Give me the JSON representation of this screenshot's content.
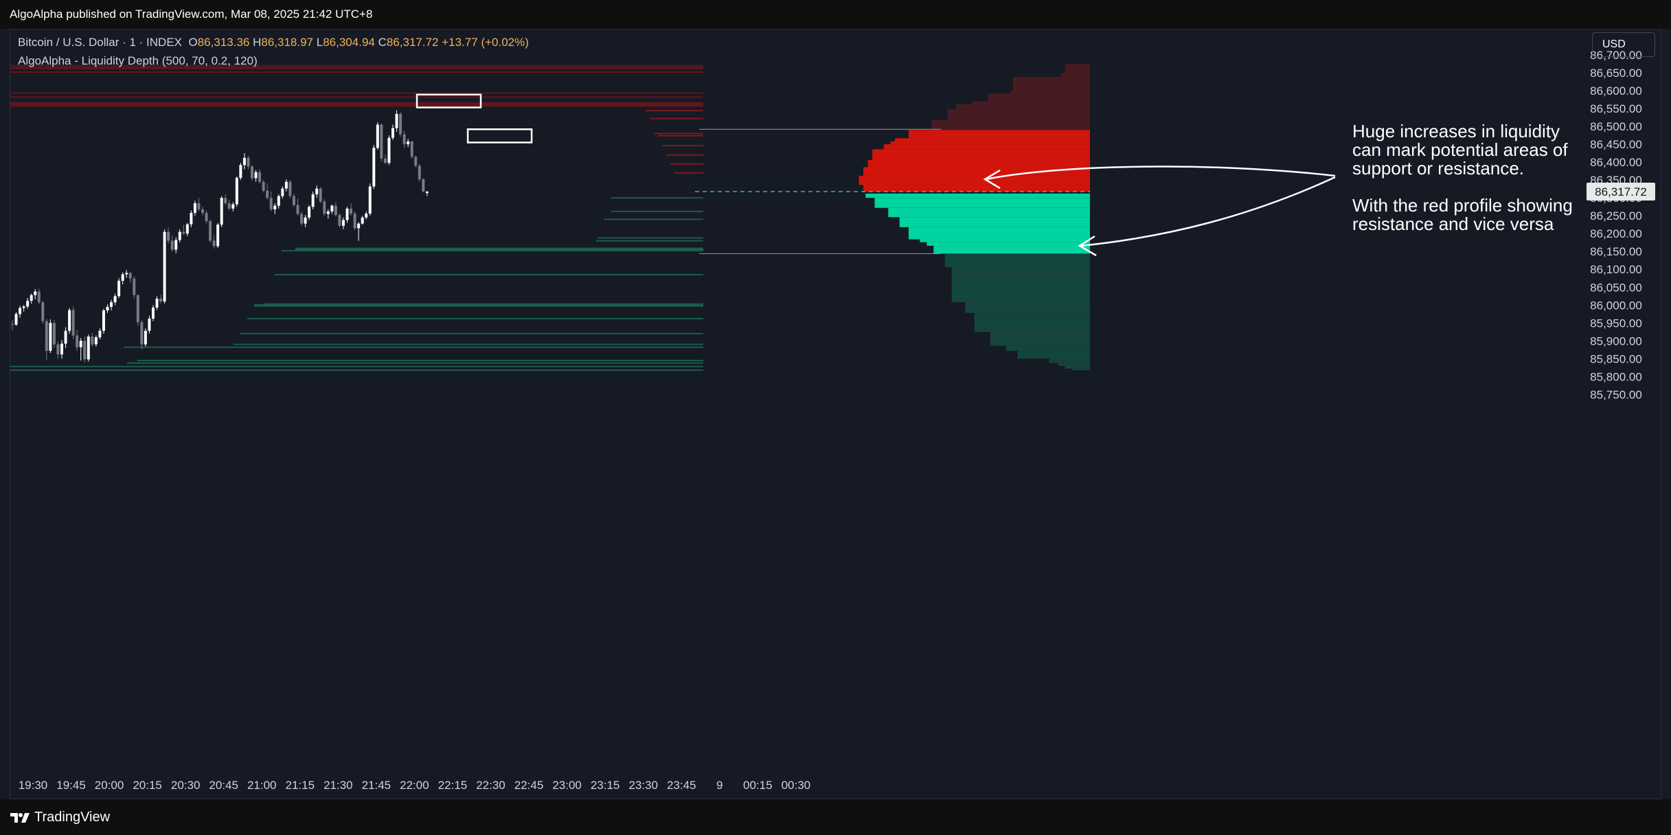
{
  "header": {
    "publish_line": "AlgoAlpha published on TradingView.com, Mar 08, 2025 21:42 UTC+8"
  },
  "legend": {
    "symbol": "Bitcoin / U.S. Dollar · 1 · INDEX",
    "open_label": "O",
    "open": "86,313.36",
    "high_label": "H",
    "high": "86,318.97",
    "low_label": "L",
    "low": "86,304.94",
    "close_label": "C",
    "close": "86,317.72",
    "change": "+13.77 (+0.02%)",
    "indicator": "AlgoAlpha - Liquidity Depth (500, 70, 0.2, 120)"
  },
  "currency_button": "USD",
  "annotation": {
    "line1": "Huge increases in liquidity can mark potential areas of support or resistance.",
    "line2": "With the red profile showing resistance and vice versa"
  },
  "footer": {
    "brand": "TradingView"
  },
  "colors": {
    "background": "#161a25",
    "bull": "#ffffff",
    "bear": "#787b86",
    "resistance_bright": "#d2150c",
    "resistance_dark": "#461b22",
    "support_bright": "#00d4a0",
    "support_dark": "#144a40"
  },
  "chart_data": {
    "type": "candlestick",
    "title": "Bitcoin / U.S. Dollar · 1 · INDEX",
    "ylim": [
      85720,
      86740
    ],
    "y_ticks": [
      86700,
      86650,
      86600,
      86550,
      86500,
      86450,
      86400,
      86350,
      86300,
      86250,
      86200,
      86150,
      86100,
      86050,
      86000,
      85950,
      85900,
      85850,
      85800,
      85750
    ],
    "y_tick_labels": [
      "86,700.00",
      "86,650.00",
      "86,600.00",
      "86,550.00",
      "86,500.00",
      "86,450.00",
      "86,400.00",
      "86,350.00",
      "86,300.00",
      "86,250.00",
      "86,200.00",
      "86,150.00",
      "86,100.00",
      "86,050.00",
      "86,000.00",
      "85,950.00",
      "85,900.00",
      "85,850.00",
      "85,800.00",
      "85,750.00"
    ],
    "last_price": 86317.72,
    "last_price_label": "86,317.72",
    "x_tick_labels": [
      "19:30",
      "19:45",
      "20:00",
      "20:15",
      "20:30",
      "20:45",
      "21:00",
      "21:15",
      "21:30",
      "21:45",
      "22:00",
      "22:15",
      "22:30",
      "22:45",
      "23:00",
      "23:15",
      "23:30",
      "23:45",
      "9",
      "00:15",
      "00:30"
    ],
    "x_tick_minutes": [
      0,
      15,
      30,
      45,
      60,
      75,
      90,
      105,
      120,
      135,
      150,
      165,
      180,
      195,
      210,
      225,
      240,
      255,
      270,
      285,
      300
    ],
    "candles": [
      [
        85947,
        85958,
        85930,
        85945
      ],
      [
        85945,
        85980,
        85942,
        85975
      ],
      [
        85975,
        85998,
        85965,
        85992
      ],
      [
        85992,
        86000,
        85982,
        85996
      ],
      [
        85996,
        86020,
        85990,
        86012
      ],
      [
        86012,
        86032,
        86004,
        86028
      ],
      [
        86028,
        86045,
        86016,
        86038
      ],
      [
        86038,
        86046,
        86002,
        86008
      ],
      [
        86008,
        86012,
        85948,
        85955
      ],
      [
        85955,
        85962,
        85845,
        85872
      ],
      [
        85872,
        85960,
        85866,
        85950
      ],
      [
        85950,
        85958,
        85880,
        85890
      ],
      [
        85890,
        85898,
        85850,
        85862
      ],
      [
        85862,
        85902,
        85850,
        85892
      ],
      [
        85892,
        85938,
        85880,
        85928
      ],
      [
        85928,
        85992,
        85920,
        85986
      ],
      [
        85986,
        85996,
        85905,
        85915
      ],
      [
        85915,
        85930,
        85872,
        85882
      ],
      [
        85882,
        85908,
        85845,
        85900
      ],
      [
        85900,
        85912,
        85840,
        85848
      ],
      [
        85848,
        85918,
        85842,
        85912
      ],
      [
        85912,
        85922,
        85884,
        85890
      ],
      [
        85890,
        85915,
        85884,
        85910
      ],
      [
        85910,
        85935,
        85904,
        85928
      ],
      [
        85928,
        85990,
        85920,
        85985
      ],
      [
        85985,
        86002,
        85978,
        85995
      ],
      [
        85995,
        86015,
        85985,
        86008
      ],
      [
        86008,
        86032,
        86000,
        86025
      ],
      [
        86025,
        86075,
        86020,
        86068
      ],
      [
        86068,
        86092,
        86058,
        86086
      ],
      [
        86086,
        86098,
        86076,
        86090
      ],
      [
        86090,
        86094,
        86062,
        86074
      ],
      [
        86074,
        86080,
        86018,
        86028
      ],
      [
        86028,
        86030,
        85942,
        85952
      ],
      [
        85952,
        85958,
        85876,
        85890
      ],
      [
        85890,
        85935,
        85884,
        85928
      ],
      [
        85928,
        85970,
        85920,
        85962
      ],
      [
        85962,
        86000,
        85955,
        85993
      ],
      [
        85993,
        86025,
        85986,
        86018
      ],
      [
        86018,
        86030,
        86005,
        86010
      ],
      [
        86010,
        86212,
        86004,
        86205
      ],
      [
        86205,
        86218,
        86172,
        86180
      ],
      [
        86180,
        86195,
        86150,
        86155
      ],
      [
        86155,
        86190,
        86145,
        86182
      ],
      [
        86182,
        86212,
        86175,
        86205
      ],
      [
        86205,
        86225,
        86195,
        86200
      ],
      [
        86200,
        86230,
        86193,
        86226
      ],
      [
        86226,
        86265,
        86218,
        86258
      ],
      [
        86258,
        86292,
        86250,
        86285
      ],
      [
        86285,
        86300,
        86262,
        86268
      ],
      [
        86268,
        86275,
        86250,
        86258
      ],
      [
        86258,
        86265,
        86228,
        86235
      ],
      [
        86235,
        86240,
        86175,
        86180
      ],
      [
        86180,
        86195,
        86158,
        86165
      ],
      [
        86165,
        86230,
        86160,
        86225
      ],
      [
        86225,
        86305,
        86218,
        86300
      ],
      [
        86300,
        86310,
        86280,
        86285
      ],
      [
        86285,
        86295,
        86265,
        86270
      ],
      [
        86270,
        86288,
        86262,
        86282
      ],
      [
        86282,
        86360,
        86275,
        86356
      ],
      [
        86356,
        86398,
        86350,
        86392
      ],
      [
        86392,
        86425,
        86380,
        86412
      ],
      [
        86412,
        86418,
        86380,
        86388
      ],
      [
        86388,
        86392,
        86348,
        86355
      ],
      [
        86355,
        86378,
        86345,
        86372
      ],
      [
        86372,
        86380,
        86340,
        86345
      ],
      [
        86345,
        86350,
        86315,
        86320
      ],
      [
        86320,
        86340,
        86295,
        86300
      ],
      [
        86300,
        86318,
        86262,
        86268
      ],
      [
        86268,
        86285,
        86255,
        86278
      ],
      [
        86278,
        86310,
        86270,
        86305
      ],
      [
        86305,
        86332,
        86298,
        86326
      ],
      [
        86326,
        86352,
        86318,
        86345
      ],
      [
        86345,
        86350,
        86298,
        86305
      ],
      [
        86305,
        86312,
        86275,
        86280
      ],
      [
        86280,
        86298,
        86250,
        86255
      ],
      [
        86255,
        86262,
        86222,
        86228
      ],
      [
        86228,
        86252,
        86218,
        86245
      ],
      [
        86245,
        86280,
        86238,
        86275
      ],
      [
        86275,
        86318,
        86268,
        86310
      ],
      [
        86310,
        86335,
        86300,
        86326
      ],
      [
        86326,
        86330,
        86285,
        86290
      ],
      [
        86290,
        86296,
        86250,
        86255
      ],
      [
        86255,
        86268,
        86242,
        86262
      ],
      [
        86262,
        86282,
        86255,
        86278
      ],
      [
        86278,
        86288,
        86248,
        86252
      ],
      [
        86252,
        86258,
        86218,
        86222
      ],
      [
        86222,
        86245,
        86212,
        86238
      ],
      [
        86238,
        86275,
        86230,
        86270
      ],
      [
        86270,
        86285,
        86250,
        86256
      ],
      [
        86256,
        86262,
        86210,
        86215
      ],
      [
        86215,
        86232,
        86180,
        86228
      ],
      [
        86228,
        86250,
        86225,
        86245
      ],
      [
        86245,
        86262,
        86240,
        86256
      ],
      [
        86256,
        86340,
        86250,
        86332
      ],
      [
        86332,
        86448,
        86325,
        86440
      ],
      [
        86440,
        86512,
        86435,
        86505
      ],
      [
        86505,
        86508,
        86402,
        86410
      ],
      [
        86410,
        86420,
        86395,
        86398
      ],
      [
        86398,
        86475,
        86392,
        86468
      ],
      [
        86468,
        86505,
        86462,
        86495
      ],
      [
        86495,
        86545,
        86485,
        86535
      ],
      [
        86535,
        86540,
        86470,
        86478
      ],
      [
        86478,
        86488,
        86440,
        86450
      ],
      [
        86450,
        86465,
        86442,
        86458
      ],
      [
        86458,
        86460,
        86410,
        86415
      ],
      [
        86415,
        86418,
        86385,
        86390
      ],
      [
        86390,
        86395,
        86345,
        86352
      ],
      [
        86352,
        86356,
        86315,
        86318
      ],
      [
        86313.36,
        86318.97,
        86304.94,
        86317.72
      ]
    ],
    "resistance_levels": [
      86670,
      86665,
      86662,
      86652,
      86593,
      86582,
      86565,
      86561,
      86557,
      86544,
      86522,
      86480,
      86474,
      86446,
      86420,
      86395,
      86370
    ],
    "support_levels": [
      86300,
      86262,
      86240,
      86188,
      86180,
      86157,
      86152,
      86085,
      86003,
      85999,
      85962,
      85920,
      85890,
      85882,
      85845,
      85838,
      85828,
      85818
    ],
    "depth_profile": {
      "resistance": [
        {
          "price_low": 86649,
          "price_high": 86675,
          "liquidity": 0.11
        },
        {
          "price_low": 86638,
          "price_high": 86649,
          "liquidity": 0.13
        },
        {
          "price_low": 86600,
          "price_high": 86638,
          "liquidity": 0.34
        },
        {
          "price_low": 86592,
          "price_high": 86600,
          "liquidity": 0.35
        },
        {
          "price_low": 86570,
          "price_high": 86592,
          "liquidity": 0.45
        },
        {
          "price_low": 86562,
          "price_high": 86570,
          "liquidity": 0.52
        },
        {
          "price_low": 86548,
          "price_high": 86562,
          "liquidity": 0.59
        },
        {
          "price_low": 86518,
          "price_high": 86548,
          "liquidity": 0.63
        },
        {
          "price_low": 86490,
          "price_high": 86518,
          "liquidity": 0.7
        },
        {
          "price_low": 86467,
          "price_high": 86490,
          "liquidity": 0.8
        },
        {
          "price_low": 86458,
          "price_high": 86467,
          "liquidity": 0.86
        },
        {
          "price_low": 86450,
          "price_high": 86458,
          "liquidity": 0.88
        },
        {
          "price_low": 86436,
          "price_high": 86450,
          "liquidity": 0.91
        },
        {
          "price_low": 86406,
          "price_high": 86436,
          "liquidity": 0.96
        },
        {
          "price_low": 86386,
          "price_high": 86406,
          "liquidity": 0.98
        },
        {
          "price_low": 86362,
          "price_high": 86386,
          "liquidity": 1.0
        },
        {
          "price_low": 86336,
          "price_high": 86362,
          "liquidity": 1.02
        },
        {
          "price_low": 86317,
          "price_high": 86336,
          "liquidity": 1.0
        }
      ],
      "support": [
        {
          "price_low": 86300,
          "price_high": 86312,
          "liquidity": 0.99
        },
        {
          "price_low": 86272,
          "price_high": 86300,
          "liquidity": 0.95
        },
        {
          "price_low": 86246,
          "price_high": 86272,
          "liquidity": 0.89
        },
        {
          "price_low": 86218,
          "price_high": 86246,
          "liquidity": 0.84
        },
        {
          "price_low": 86184,
          "price_high": 86218,
          "liquidity": 0.8
        },
        {
          "price_low": 86176,
          "price_high": 86184,
          "liquidity": 0.75
        },
        {
          "price_low": 86166,
          "price_high": 86176,
          "liquidity": 0.72
        },
        {
          "price_low": 86144,
          "price_high": 86166,
          "liquidity": 0.69
        },
        {
          "price_low": 86106,
          "price_high": 86144,
          "liquidity": 0.64
        },
        {
          "price_low": 86008,
          "price_high": 86106,
          "liquidity": 0.61
        },
        {
          "price_low": 85978,
          "price_high": 86008,
          "liquidity": 0.55
        },
        {
          "price_low": 85925,
          "price_high": 85978,
          "liquidity": 0.51
        },
        {
          "price_low": 85886,
          "price_high": 85925,
          "liquidity": 0.44
        },
        {
          "price_low": 85872,
          "price_high": 85886,
          "liquidity": 0.37
        },
        {
          "price_low": 85850,
          "price_high": 85872,
          "liquidity": 0.32
        },
        {
          "price_low": 85838,
          "price_high": 85850,
          "liquidity": 0.18
        },
        {
          "price_low": 85830,
          "price_high": 85838,
          "liquidity": 0.14
        },
        {
          "price_low": 85822,
          "price_high": 85830,
          "liquidity": 0.11
        },
        {
          "price_low": 85818,
          "price_high": 85822,
          "liquidity": 0.08
        }
      ],
      "start_minute": 135,
      "end_minute": 210
    },
    "highlight_boxes": [
      {
        "price_low": 86553,
        "price_high": 86589,
        "minute_from": 158,
        "minute_to": 185
      },
      {
        "price_low": 86455,
        "price_high": 86492,
        "minute_from": 178,
        "minute_to": 205
      }
    ],
    "separator_lines": [
      86492,
      86144
    ]
  }
}
